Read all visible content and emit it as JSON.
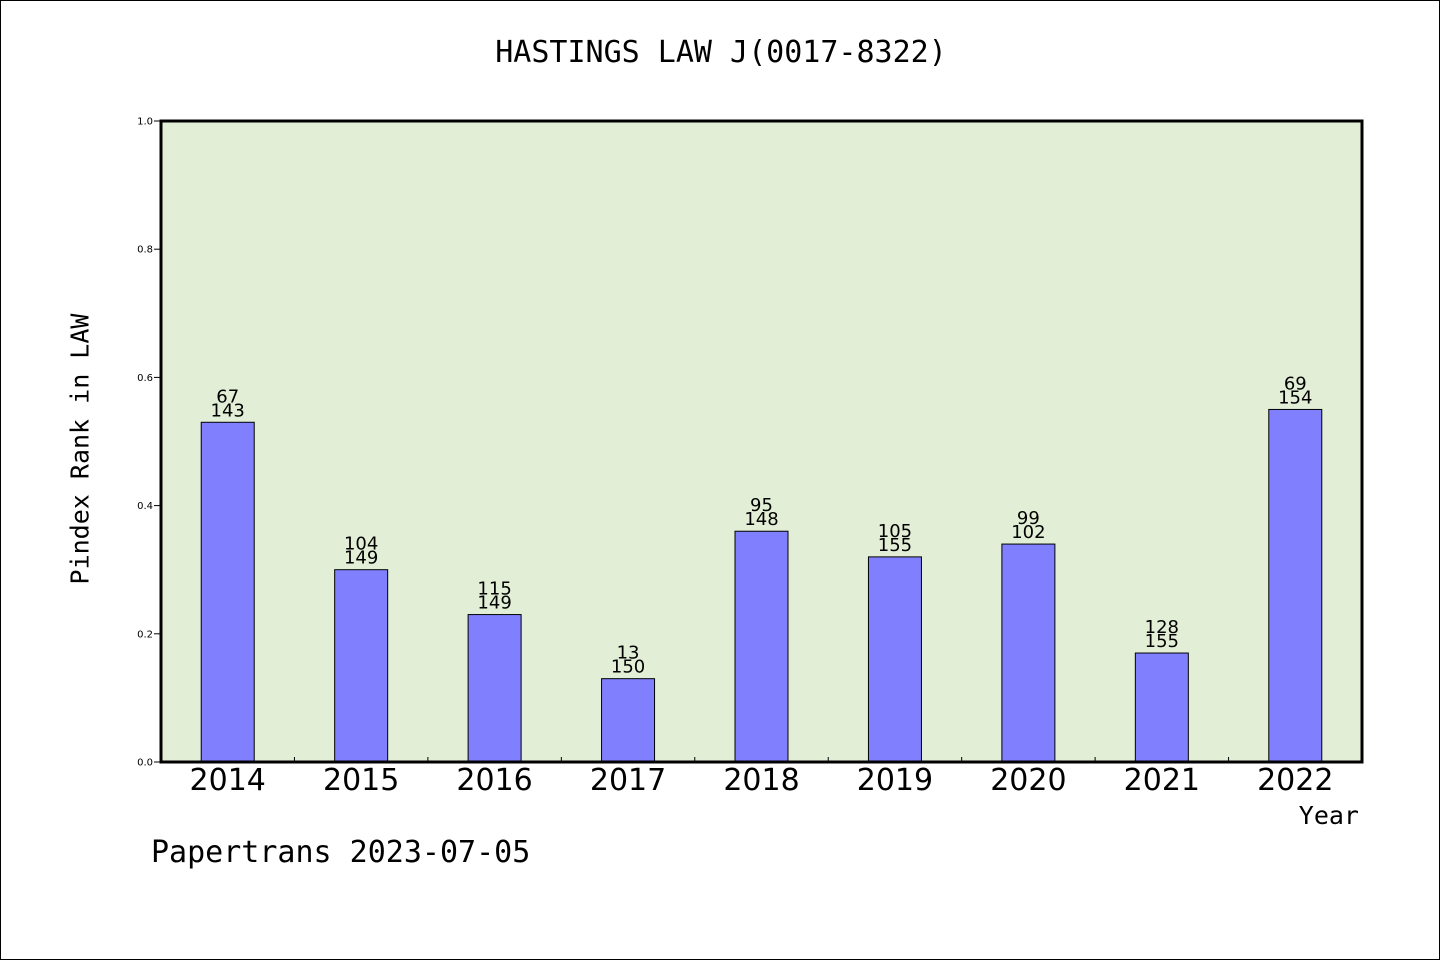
{
  "chart_data": {
    "type": "bar",
    "title": "HASTINGS LAW J(0017-8322)",
    "xlabel": "Year",
    "ylabel": "Pindex Rank in LAW",
    "categories": [
      "2014",
      "2015",
      "2016",
      "2017",
      "2018",
      "2019",
      "2020",
      "2021",
      "2022"
    ],
    "values": [
      0.53,
      0.3,
      0.23,
      0.13,
      0.36,
      0.32,
      0.34,
      0.17,
      0.55
    ],
    "label_top": [
      "67",
      "104",
      "115",
      "13",
      "95",
      "105",
      "99",
      "128",
      "69"
    ],
    "label_bottom": [
      "143",
      "149",
      "149",
      "150",
      "148",
      "155",
      "102",
      "155",
      "154"
    ],
    "ylim": [
      0,
      1.0
    ],
    "yticks": [
      "0.0",
      "0.2",
      "0.4",
      "0.6",
      "0.8",
      "1.0"
    ],
    "grid": false,
    "colors": {
      "plot_background": "#e2efd6",
      "bar_fill": "#8080ff",
      "bar_edge": "#000000"
    }
  },
  "footer": "Papertrans 2023-07-05"
}
